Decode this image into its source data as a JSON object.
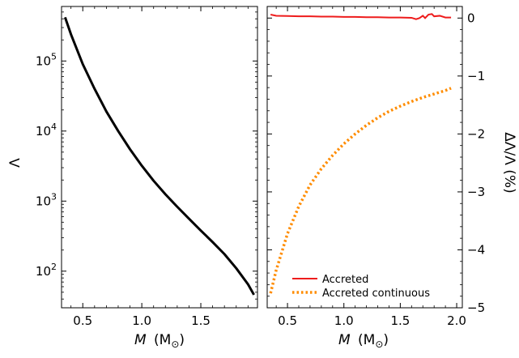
{
  "chart_data": [
    {
      "panel": "left",
      "type": "line",
      "xlabel_symbol": "M",
      "xlabel_unit": "(M",
      "xlabel_sub": "⊙",
      "xlabel_close": ")",
      "ylabel": "Λ",
      "yscale": "log",
      "xlim": [
        0.32,
        1.98
      ],
      "ylim": [
        30,
        600000
      ],
      "xticks": [
        0.5,
        1.0,
        1.5
      ],
      "xtick_labels": [
        "0.5",
        "1.0",
        "1.5"
      ],
      "ytick_exponents": [
        "2",
        "3",
        "4",
        "5"
      ],
      "ytick_base": "10",
      "series": [
        {
          "name": "Λ(M)",
          "color": "#000000",
          "x": [
            0.35,
            0.4,
            0.5,
            0.6,
            0.7,
            0.8,
            0.9,
            1.0,
            1.1,
            1.2,
            1.3,
            1.4,
            1.5,
            1.6,
            1.7,
            1.8,
            1.9,
            1.95
          ],
          "y": [
            420000,
            240000,
            90000,
            40000,
            19000,
            10000,
            5500,
            3200,
            1950,
            1250,
            830,
            560,
            380,
            260,
            175,
            110,
            65,
            46
          ]
        }
      ]
    },
    {
      "panel": "right",
      "type": "line",
      "xlabel_symbol": "M",
      "xlabel_unit": "(M",
      "xlabel_sub": "⊙",
      "xlabel_close": ")",
      "ylabel": "ΔΛ/Λ (%)",
      "xlim": [
        0.32,
        2.05
      ],
      "ylim": [
        -5,
        0.2
      ],
      "xticks": [
        0.5,
        1.0,
        1.5,
        2.0
      ],
      "xtick_labels": [
        "0.5",
        "1.0",
        "1.5",
        "2.0"
      ],
      "yticks": [
        0,
        -1,
        -2,
        -3,
        -4,
        -5
      ],
      "ytick_labels": [
        "0",
        "−1",
        "−2",
        "−3",
        "−4",
        "−5"
      ],
      "legend_position": "lower-right",
      "series": [
        {
          "name": "Accreted",
          "color": "#ee1c1c",
          "style": "solid",
          "x": [
            0.35,
            0.4,
            0.5,
            0.6,
            0.7,
            0.8,
            0.9,
            1.0,
            1.1,
            1.2,
            1.3,
            1.4,
            1.5,
            1.6,
            1.64,
            1.67,
            1.7,
            1.72,
            1.75,
            1.78,
            1.8,
            1.85,
            1.9,
            1.95
          ],
          "y": [
            0.06,
            0.04,
            0.035,
            0.03,
            0.03,
            0.025,
            0.025,
            0.02,
            0.02,
            0.015,
            0.015,
            0.01,
            0.01,
            0.005,
            -0.02,
            0.0,
            0.04,
            0.0,
            0.06,
            0.07,
            0.03,
            0.04,
            0.01,
            0.01
          ]
        },
        {
          "name": "Accreted continuous",
          "color": "#ff8c00",
          "style": "dotted",
          "x": [
            0.35,
            0.4,
            0.5,
            0.6,
            0.7,
            0.8,
            0.9,
            1.0,
            1.1,
            1.2,
            1.3,
            1.4,
            1.5,
            1.6,
            1.7,
            1.8,
            1.9,
            1.95
          ],
          "y": [
            -4.75,
            -4.35,
            -3.72,
            -3.25,
            -2.88,
            -2.6,
            -2.37,
            -2.17,
            -2.0,
            -1.85,
            -1.72,
            -1.61,
            -1.52,
            -1.44,
            -1.37,
            -1.31,
            -1.25,
            -1.21
          ]
        }
      ]
    }
  ]
}
